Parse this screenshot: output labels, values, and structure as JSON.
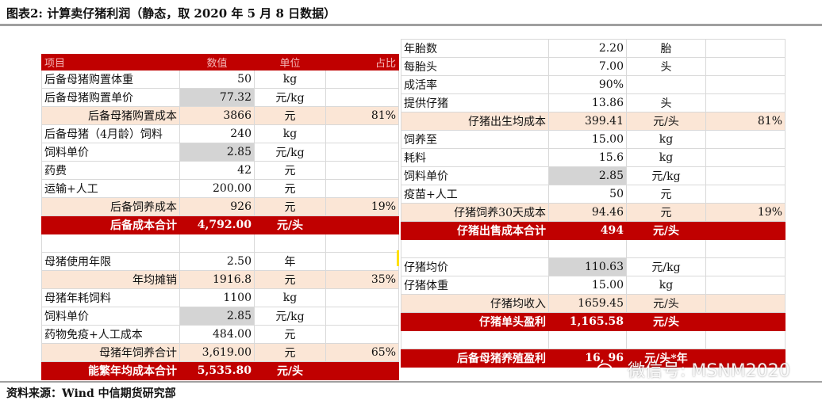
{
  "title": "图表2: 计算卖仔猪利润（静态，取 2020 年 5 月 8 日数据）",
  "source": "资料来源：Wind 中信期货研究部",
  "watermark": "微信号: MSNM2020",
  "left_table": {
    "header": [
      "项目",
      "数值",
      "单位",
      "占比"
    ],
    "rows": [
      {
        "type": "row",
        "cells": [
          "后备母猪购置体重",
          "50",
          "kg",
          ""
        ]
      },
      {
        "type": "row",
        "cells": [
          "后备母猪购置单价",
          "77.32",
          "元/kg",
          ""
        ],
        "gray": true
      },
      {
        "type": "sub",
        "cells": [
          "后备母猪购置成本",
          "3866",
          "元",
          "81%"
        ]
      },
      {
        "type": "row",
        "cells": [
          "后备母猪（4月龄）饲料",
          "240",
          "kg",
          ""
        ]
      },
      {
        "type": "row",
        "cells": [
          "饲料单价",
          "2.85",
          "元/kg",
          ""
        ],
        "gray": true
      },
      {
        "type": "row",
        "cells": [
          "药费",
          "42",
          "元",
          ""
        ]
      },
      {
        "type": "row",
        "cells": [
          "运输+人工",
          "200.00",
          "元",
          ""
        ]
      },
      {
        "type": "sub",
        "cells": [
          "后备饲养成本",
          "926",
          "元",
          "19%"
        ]
      },
      {
        "type": "tot",
        "cells": [
          "后备成本合计",
          "4,792.00",
          "元/头",
          ""
        ]
      },
      {
        "type": "blank",
        "cells": [
          "",
          "",
          "",
          ""
        ]
      },
      {
        "type": "row",
        "cells": [
          "母猪使用年限",
          "2.50",
          "年",
          ""
        ]
      },
      {
        "type": "sub",
        "cells": [
          "年均摊销",
          "1916.8",
          "元",
          "35%"
        ]
      },
      {
        "type": "row",
        "cells": [
          "母猪年耗饲料",
          "1100",
          "kg",
          ""
        ]
      },
      {
        "type": "row",
        "cells": [
          "饲料单价",
          "2.85",
          "元/kg",
          ""
        ],
        "gray": true
      },
      {
        "type": "row",
        "cells": [
          "药物免疫+人工成本",
          "484.00",
          "元",
          ""
        ]
      },
      {
        "type": "sub",
        "cells": [
          "母猪年饲养合计",
          "3,619.00",
          "元",
          "65%"
        ]
      },
      {
        "type": "tot",
        "cells": [
          "能繁年均成本合计",
          "5,535.80",
          "元/头",
          ""
        ]
      }
    ]
  },
  "right_table": {
    "rows": [
      {
        "type": "row",
        "cells": [
          "年胎数",
          "2.20",
          "胎",
          ""
        ]
      },
      {
        "type": "row",
        "cells": [
          "每胎头",
          "7.00",
          "头",
          ""
        ]
      },
      {
        "type": "row",
        "cells": [
          "成活率",
          "90%",
          "",
          ""
        ]
      },
      {
        "type": "row",
        "cells": [
          "提供仔猪",
          "13.86",
          "头",
          ""
        ]
      },
      {
        "type": "sub",
        "cells": [
          "仔猪出生均成本",
          "399.41",
          "元/头",
          "81%"
        ]
      },
      {
        "type": "row",
        "cells": [
          "饲养至",
          "15.00",
          "kg",
          ""
        ]
      },
      {
        "type": "row",
        "cells": [
          "耗料",
          "15.6",
          "kg",
          ""
        ]
      },
      {
        "type": "row",
        "cells": [
          "饲料单价",
          "2.85",
          "元/kg",
          ""
        ],
        "gray": true
      },
      {
        "type": "row",
        "cells": [
          "疫苗+人工",
          "50",
          "元",
          ""
        ]
      },
      {
        "type": "sub",
        "cells": [
          "仔猪饲养30天成本",
          "94.46",
          "元",
          "19%"
        ]
      },
      {
        "type": "tot",
        "cells": [
          "仔猪出售成本合计",
          "494",
          "元/头",
          ""
        ]
      },
      {
        "type": "blank",
        "cells": [
          "",
          "",
          "",
          ""
        ]
      },
      {
        "type": "row",
        "cells": [
          "仔猪均价",
          "110.63",
          "元/kg",
          ""
        ],
        "gray": true
      },
      {
        "type": "row",
        "cells": [
          "仔猪体重",
          "15.00",
          "kg",
          ""
        ]
      },
      {
        "type": "sub",
        "cells": [
          "仔猪均收入",
          "1659.45",
          "元/头",
          ""
        ]
      },
      {
        "type": "tot",
        "cells": [
          "仔猪单头盈利",
          "1,165.58",
          "元/头",
          ""
        ]
      },
      {
        "type": "blank",
        "cells": [
          "",
          "",
          "",
          ""
        ]
      },
      {
        "type": "tot",
        "cells": [
          "后备母猪养殖盈利",
          "16,  96",
          "元/头*年",
          ""
        ]
      }
    ]
  }
}
